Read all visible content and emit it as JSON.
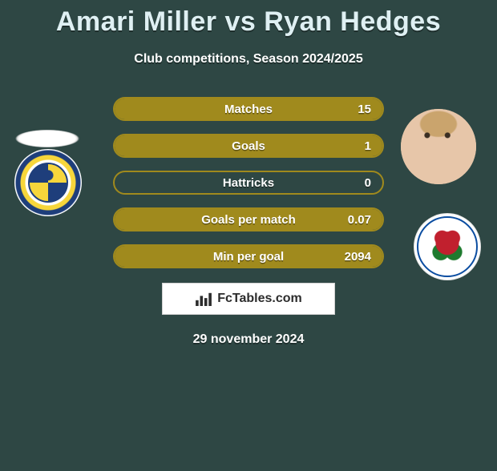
{
  "title": "Amari Miller vs Ryan Hedges",
  "subtitle": "Club competitions, Season 2024/2025",
  "date": "29 november 2024",
  "watermark": "FcTables.com",
  "colors": {
    "background": "#2e4744",
    "bar_border": "#a08a1d",
    "bar_fill": "#a08a1d",
    "text_light": "#ffffff",
    "title_color": "#dff0f3"
  },
  "stats": [
    {
      "label": "Matches",
      "value": "15",
      "fill_pct": 100
    },
    {
      "label": "Goals",
      "value": "1",
      "fill_pct": 100
    },
    {
      "label": "Hattricks",
      "value": "0",
      "fill_pct": 0
    },
    {
      "label": "Goals per match",
      "value": "0.07",
      "fill_pct": 100
    },
    {
      "label": "Min per goal",
      "value": "2094",
      "fill_pct": 100
    }
  ],
  "players": {
    "left": {
      "name": "Amari Miller",
      "club": "Leeds United"
    },
    "right": {
      "name": "Ryan Hedges",
      "club": "Blackburn Rovers"
    }
  }
}
